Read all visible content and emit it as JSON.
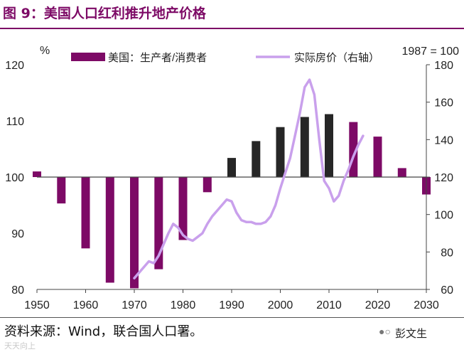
{
  "header": {
    "title": "图 9：美国人口红利推升地产价格"
  },
  "footer": {
    "source": "资料来源：Wind，联合国人口署。",
    "watermark": "彭文生",
    "faint_mark": "天天向上"
  },
  "chart_data": {
    "type": "bar+line",
    "left_axis": {
      "unit": "%",
      "range": [
        80,
        120
      ],
      "ticks": [
        80,
        90,
        100,
        110,
        120
      ]
    },
    "right_axis": {
      "note": "1987 = 100",
      "range": [
        60,
        180
      ],
      "ticks": [
        60,
        80,
        100,
        120,
        140,
        160,
        180
      ]
    },
    "x_axis": {
      "range": [
        1950,
        2030
      ],
      "ticks": [
        1950,
        1960,
        1970,
        1980,
        1990,
        2000,
        2010,
        2020,
        2030
      ]
    },
    "bar_series": {
      "name": "美国：生产者/消费者",
      "baseline": 100,
      "color_purple": "#7d0a66",
      "color_dark": "#262626",
      "x": [
        1950,
        1955,
        1960,
        1965,
        1970,
        1975,
        1980,
        1985,
        1990,
        1995,
        2000,
        2005,
        2010,
        2015,
        2020,
        2025,
        2030
      ],
      "values": [
        101.0,
        95.3,
        87.3,
        81.2,
        80.2,
        83.6,
        88.8,
        97.3,
        103.4,
        106.4,
        108.9,
        110.7,
        111.2,
        109.8,
        107.2,
        101.6,
        96.9
      ],
      "dark": [
        false,
        false,
        false,
        false,
        false,
        false,
        false,
        false,
        true,
        true,
        true,
        true,
        true,
        false,
        false,
        false,
        false
      ]
    },
    "line_series": {
      "name": "实际房价（右轴）",
      "color": "#c9a0ec",
      "x": [
        1970,
        1971,
        1972,
        1973,
        1974,
        1975,
        1976,
        1977,
        1978,
        1979,
        1980,
        1981,
        1982,
        1983,
        1984,
        1985,
        1986,
        1987,
        1988,
        1989,
        1990,
        1991,
        1992,
        1993,
        1994,
        1995,
        1996,
        1997,
        1998,
        1999,
        2000,
        2001,
        2002,
        2003,
        2004,
        2005,
        2006,
        2007,
        2008,
        2009,
        2010,
        2011,
        2012,
        2013,
        2014,
        2015,
        2016,
        2017
      ],
      "values": [
        66,
        69,
        72,
        75,
        74,
        78,
        84,
        90,
        95,
        93,
        89,
        87,
        86,
        88,
        90,
        95,
        99,
        102,
        105,
        108,
        107,
        101,
        97,
        96,
        96,
        95,
        95,
        96,
        99,
        105,
        114,
        122,
        130,
        142,
        154,
        168,
        172,
        164,
        140,
        118,
        114,
        107,
        110,
        118,
        124,
        131,
        137,
        142
      ]
    },
    "legend": {
      "placement": "top"
    }
  }
}
